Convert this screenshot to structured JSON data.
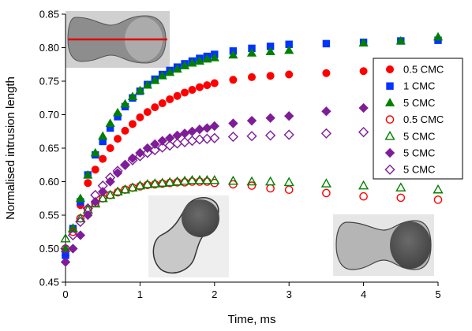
{
  "chart_data": {
    "type": "scatter",
    "xlabel": "Time, ms",
    "ylabel": "Normalised intrusion length",
    "xlim": [
      0,
      5
    ],
    "ylim": [
      0.45,
      0.85
    ],
    "x_ticks": [
      "0",
      "1",
      "2",
      "3",
      "4",
      "5"
    ],
    "y_ticks": [
      "0.45",
      "0.50",
      "0.55",
      "0.60",
      "0.65",
      "0.70",
      "0.75",
      "0.80",
      "0.85"
    ],
    "grid": false,
    "legend_position": "right",
    "colors": {
      "red": "#ff0000",
      "blue": "#0033ff",
      "green": "#008000",
      "purple": "#7f1d99"
    },
    "series": [
      {
        "name": "0.5 CMC",
        "marker": "circle-filled",
        "color": "red",
        "x": [
          0,
          0.1,
          0.2,
          0.3,
          0.4,
          0.5,
          0.6,
          0.7,
          0.8,
          0.9,
          1.0,
          1.1,
          1.2,
          1.3,
          1.4,
          1.5,
          1.6,
          1.7,
          1.8,
          1.9,
          2.0,
          2.25,
          2.5,
          2.75,
          3.0,
          3.5,
          4.0
        ],
        "y": [
          0.49,
          0.53,
          0.565,
          0.598,
          0.618,
          0.634,
          0.65,
          0.664,
          0.676,
          0.686,
          0.696,
          0.704,
          0.711,
          0.717,
          0.723,
          0.728,
          0.733,
          0.737,
          0.741,
          0.744,
          0.747,
          0.752,
          0.756,
          0.758,
          0.76,
          0.762,
          0.765
        ]
      },
      {
        "name": "1 CMC",
        "marker": "square-filled",
        "color": "blue",
        "x": [
          0,
          0.1,
          0.2,
          0.3,
          0.4,
          0.5,
          0.6,
          0.7,
          0.8,
          0.9,
          1.0,
          1.1,
          1.2,
          1.3,
          1.4,
          1.5,
          1.6,
          1.7,
          1.8,
          1.9,
          2.0,
          2.25,
          2.5,
          2.75,
          3.0,
          3.5,
          4.0,
          4.5,
          5.0
        ],
        "y": [
          0.49,
          0.53,
          0.57,
          0.61,
          0.64,
          0.66,
          0.68,
          0.697,
          0.712,
          0.725,
          0.735,
          0.745,
          0.753,
          0.76,
          0.766,
          0.771,
          0.776,
          0.78,
          0.784,
          0.787,
          0.79,
          0.795,
          0.799,
          0.802,
          0.805,
          0.806,
          0.808,
          0.81,
          0.811
        ]
      },
      {
        "name": "5 CMC",
        "marker": "triangle-filled",
        "color": "green",
        "x": [
          0,
          0.1,
          0.2,
          0.3,
          0.4,
          0.5,
          0.6,
          0.7,
          0.8,
          0.9,
          1.0,
          1.1,
          1.2,
          1.3,
          1.4,
          1.5,
          1.6,
          1.7,
          1.8,
          1.9,
          2.0,
          2.25,
          2.5,
          2.75,
          3.0,
          4.0,
          4.5,
          5.0
        ],
        "y": [
          0.5,
          0.53,
          0.575,
          0.61,
          0.643,
          0.668,
          0.687,
          0.703,
          0.716,
          0.727,
          0.736,
          0.744,
          0.751,
          0.758,
          0.763,
          0.768,
          0.773,
          0.777,
          0.78,
          0.783,
          0.785,
          0.789,
          0.792,
          0.794,
          0.796,
          0.807,
          0.81,
          0.816
        ]
      },
      {
        "name": "0.5 CMC",
        "marker": "circle-open",
        "color": "red",
        "x": [
          0,
          0.1,
          0.2,
          0.3,
          0.4,
          0.5,
          0.6,
          0.7,
          0.8,
          0.9,
          1.0,
          1.1,
          1.2,
          1.3,
          1.4,
          1.5,
          1.6,
          1.7,
          1.8,
          1.9,
          2.0,
          2.25,
          2.5,
          2.75,
          3.0,
          3.5,
          4.0,
          4.5,
          5.0
        ],
        "y": [
          0.5,
          0.525,
          0.545,
          0.558,
          0.568,
          0.575,
          0.58,
          0.584,
          0.588,
          0.591,
          0.593,
          0.595,
          0.596,
          0.597,
          0.598,
          0.599,
          0.599,
          0.6,
          0.6,
          0.6,
          0.598,
          0.596,
          0.594,
          0.59,
          0.588,
          0.583,
          0.578,
          0.576,
          0.573
        ]
      },
      {
        "name": "5 CMC",
        "marker": "triangle-open",
        "color": "green",
        "x": [
          0,
          0.1,
          0.2,
          0.3,
          0.4,
          0.5,
          0.6,
          0.7,
          0.8,
          0.9,
          1.0,
          1.1,
          1.2,
          1.3,
          1.4,
          1.5,
          1.6,
          1.7,
          1.8,
          1.9,
          2.0,
          2.25,
          2.5,
          2.75,
          3.0,
          3.5,
          4.0,
          4.5,
          5.0
        ],
        "y": [
          0.515,
          0.53,
          0.545,
          0.558,
          0.567,
          0.575,
          0.58,
          0.585,
          0.588,
          0.591,
          0.594,
          0.596,
          0.597,
          0.598,
          0.599,
          0.6,
          0.601,
          0.602,
          0.602,
          0.602,
          0.602,
          0.601,
          0.6,
          0.6,
          0.599,
          0.597,
          0.594,
          0.591,
          0.588
        ]
      },
      {
        "name": "5 CMC",
        "marker": "diamond-filled",
        "color": "purple",
        "x": [
          0,
          0.1,
          0.2,
          0.3,
          0.4,
          0.5,
          0.6,
          0.7,
          0.8,
          0.9,
          1.0,
          1.1,
          1.2,
          1.3,
          1.4,
          1.5,
          1.6,
          1.7,
          1.8,
          1.9,
          2.0,
          2.25,
          2.5,
          2.75,
          3.0,
          3.5,
          4.0
        ],
        "y": [
          0.48,
          0.5,
          0.52,
          0.55,
          0.57,
          0.585,
          0.6,
          0.613,
          0.625,
          0.635,
          0.643,
          0.65,
          0.656,
          0.661,
          0.665,
          0.669,
          0.672,
          0.675,
          0.678,
          0.68,
          0.683,
          0.687,
          0.691,
          0.695,
          0.698,
          0.705,
          0.71
        ]
      },
      {
        "name": "5 CMC",
        "marker": "diamond-open",
        "color": "purple",
        "x": [
          0,
          0.1,
          0.2,
          0.3,
          0.4,
          0.5,
          0.6,
          0.7,
          0.8,
          0.9,
          1.0,
          1.1,
          1.2,
          1.3,
          1.4,
          1.5,
          1.6,
          1.7,
          1.8,
          1.9,
          2.0,
          2.25,
          2.5,
          2.75,
          3.0,
          3.5,
          4.0
        ],
        "y": [
          0.5,
          0.52,
          0.54,
          0.56,
          0.58,
          0.594,
          0.606,
          0.616,
          0.625,
          0.632,
          0.638,
          0.643,
          0.647,
          0.651,
          0.654,
          0.657,
          0.659,
          0.661,
          0.663,
          0.664,
          0.665,
          0.667,
          0.668,
          0.669,
          0.67,
          0.672,
          0.674
        ]
      }
    ]
  }
}
